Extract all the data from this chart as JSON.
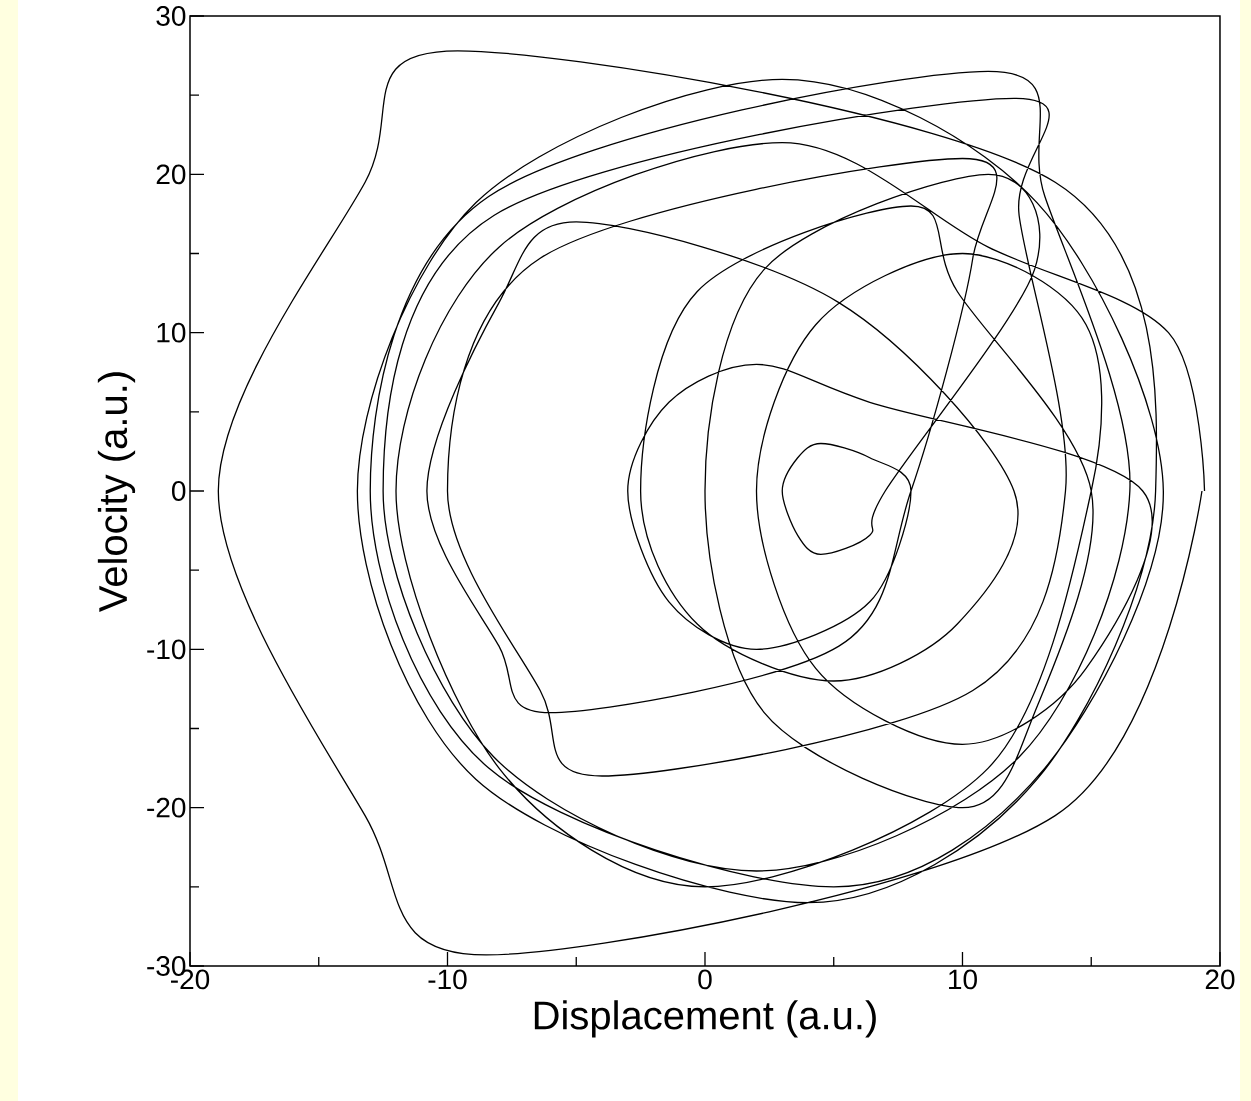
{
  "chart_data": {
    "type": "line",
    "xlabel": "Displacement (a.u.)",
    "ylabel": "Velocity (a.u.)",
    "xlim": [
      -20,
      20
    ],
    "ylim": [
      -30,
      30
    ],
    "xticks": [
      -20,
      {
        "value": -15,
        "label": null
      },
      -10,
      {
        "value": -5,
        "label": null
      },
      0,
      {
        "value": 5,
        "label": null
      },
      10,
      {
        "value": 15,
        "label": null
      },
      20
    ],
    "yticks": [
      -30,
      {
        "value": -25,
        "label": null
      },
      -20,
      {
        "value": -15,
        "label": null
      },
      -10,
      {
        "value": -5,
        "label": null
      },
      0,
      {
        "value": 5,
        "label": null
      },
      10,
      {
        "value": 15,
        "label": null
      },
      20,
      {
        "value": 25,
        "label": null
      },
      30
    ],
    "grid": false,
    "marker": "none",
    "line_style": "solid",
    "series": [
      {
        "color": "#000000",
        "x": [
          19.3,
          13.6,
          -8.5,
          -13.2,
          -18.9,
          -13.2,
          -9.6,
          13.6,
          17.5,
          12.9,
          4,
          -8.9,
          -13.5,
          -8.9,
          3,
          12.9,
          17.8,
          13.2,
          5,
          -8.4,
          -13,
          -8.4,
          11,
          13.2,
          16.5,
          12.2,
          2,
          -8.2,
          -12.5,
          -8.2,
          12,
          12.2,
          14,
          10.4,
          -4,
          -6.4,
          -10,
          -6.4,
          10,
          10.4,
          8,
          5.2,
          -6,
          -8,
          -10.8,
          -8,
          -5,
          5.2,
          12,
          9.8,
          5,
          -0.3,
          -2.5,
          -0.3,
          8,
          9.8,
          15,
          12.8,
          10,
          2.3,
          0,
          2.3,
          11,
          12.8,
          7,
          6.4,
          4.5,
          3.6,
          3,
          3.6,
          4.5,
          6.4,
          8,
          6.4,
          2,
          -1.4,
          -3,
          -1.4,
          2,
          6.4,
          17,
          14.8,
          10,
          4.3,
          2,
          4.3,
          10,
          14.8,
          15,
          11,
          0,
          -8,
          -12,
          -8,
          3,
          11,
          18,
          19.4
        ],
        "values": [
          0,
          -20.5,
          -29.3,
          -20.5,
          0,
          19.5,
          27.8,
          19.5,
          0,
          -18.2,
          -26,
          -18.2,
          0,
          18.2,
          26,
          18.2,
          0,
          -17.5,
          -25,
          -17.5,
          0,
          18.6,
          26.5,
          18.6,
          0,
          -16.8,
          -24,
          -16.8,
          0,
          17.4,
          24.8,
          17.4,
          0,
          -12.6,
          -18,
          -12.6,
          0,
          14.7,
          21,
          14.7,
          0,
          -9.8,
          -14,
          -9.8,
          0,
          11.9,
          17,
          11.9,
          0,
          -8.4,
          -12,
          -8.4,
          0,
          12.6,
          18,
          12.6,
          0,
          -14,
          -20,
          -14,
          0,
          14,
          20,
          14,
          0,
          -2.8,
          -4,
          -2.8,
          0,
          2.1,
          3,
          2.1,
          0,
          -7,
          -10,
          -7,
          0,
          5.6,
          8,
          5.6,
          0,
          -11.2,
          -16,
          -11.2,
          0,
          10.5,
          15,
          10.5,
          0,
          -17.5,
          -25,
          -17.5,
          0,
          15.4,
          22,
          15.4,
          10,
          0
        ]
      }
    ]
  }
}
